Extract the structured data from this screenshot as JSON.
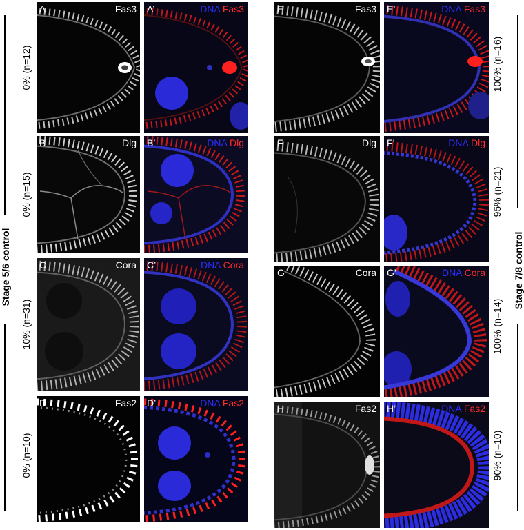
{
  "groups": {
    "left": "Stage 5/6 control",
    "right": "Stage 7/8 control"
  },
  "percentages": {
    "row1_left": "0% (n=12)",
    "row2_left": "0% (n=15)",
    "row3_left": "10% (n=31)",
    "row4_left": "0% (n=10)",
    "row1_right": "100% (n=16)",
    "row2_right": "95% (n=21)",
    "row3_right": "100% (n=14)",
    "row4_right": "90% (n=10)"
  },
  "panels": {
    "A": {
      "letter": "A",
      "stain": "Fas3"
    },
    "A2": {
      "letter": "A’",
      "dna": "DNA",
      "stain": "Fas3"
    },
    "B": {
      "letter": "B",
      "stain": "Dlg"
    },
    "B2": {
      "letter": "B’",
      "dna": "DNA",
      "stain": "Dlg"
    },
    "C": {
      "letter": "C",
      "stain": "Cora"
    },
    "C2": {
      "letter": "C’",
      "dna": "DNA",
      "stain": "Cora"
    },
    "D": {
      "letter": "D",
      "stain": "Fas2"
    },
    "D2": {
      "letter": "D’",
      "dna": "DNA",
      "stain": "Fas2"
    },
    "E": {
      "letter": "E",
      "stain": "Fas3"
    },
    "E2": {
      "letter": "E’",
      "dna": "DNA",
      "stain": "Fas3"
    },
    "F": {
      "letter": "F",
      "stain": "Dlg"
    },
    "F2": {
      "letter": "F’",
      "dna": "DNA",
      "stain": "Dlg"
    },
    "G": {
      "letter": "G",
      "stain": "Cora"
    },
    "G2": {
      "letter": "G’",
      "dna": "DNA",
      "stain": "Cora"
    },
    "H": {
      "letter": "H",
      "stain": "Fas2"
    },
    "H2": {
      "letter": "H’",
      "dna": "DNA",
      "stain": "Fas2"
    }
  },
  "colors": {
    "dna": "#2d2dff",
    "stain": "#ff2a2a",
    "grayscale": "#ffffff",
    "background": "#000000"
  }
}
